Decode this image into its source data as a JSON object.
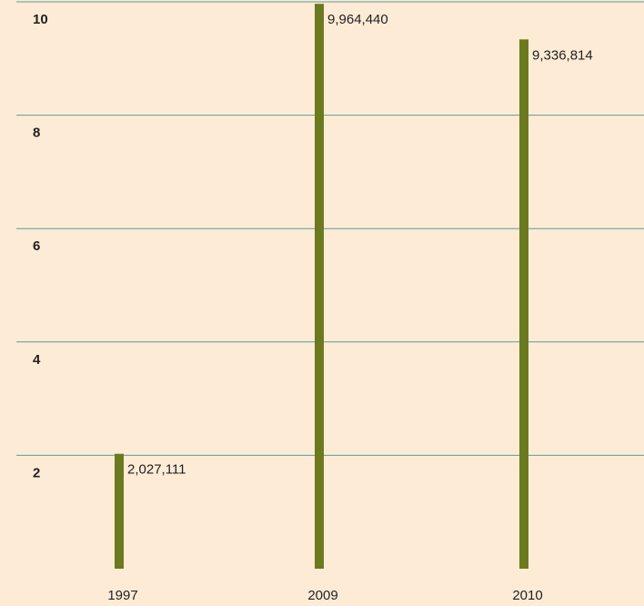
{
  "chart_data": {
    "type": "bar",
    "categories": [
      "1997",
      "2009",
      "2010"
    ],
    "values": [
      2.027111,
      9.96444,
      9.336814
    ],
    "value_labels": [
      "2,027,111",
      "9,964,440",
      "9,336,814"
    ],
    "color": "#6b7a1f",
    "ylim": [
      0,
      10
    ],
    "yticks": [
      2,
      4,
      6,
      8,
      10
    ],
    "grid": true
  }
}
